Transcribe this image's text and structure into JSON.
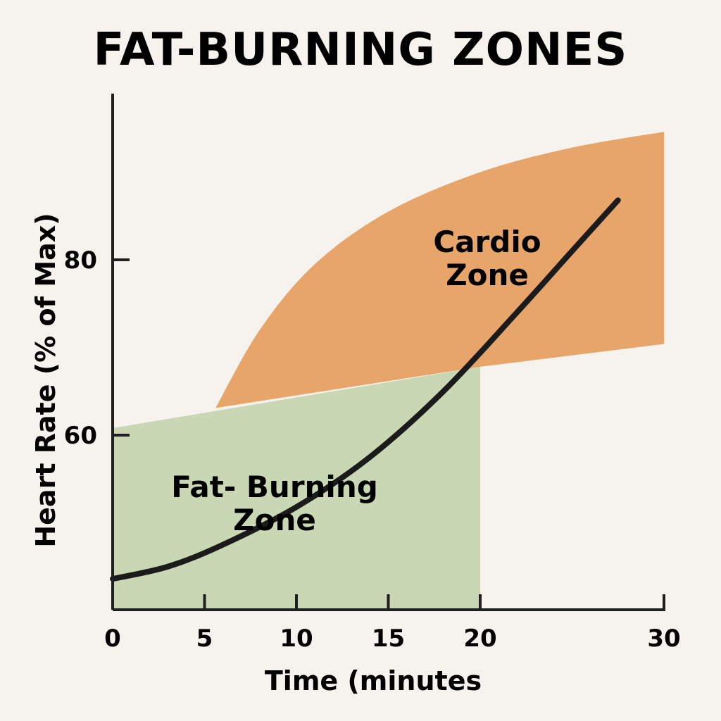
{
  "chart_data": {
    "type": "area",
    "title": "FAT-BURNING ZONES",
    "xlabel": "Time (minutes",
    "ylabel": "Heart Rate (% of Max)",
    "xlim": [
      0,
      30
    ],
    "ylim": [
      40,
      100
    ],
    "x_ticks": [
      0,
      5,
      10,
      15,
      20,
      30
    ],
    "y_ticks": [
      60,
      80
    ],
    "grid": false,
    "legend": "none",
    "zones": [
      {
        "label_lines": [
          "Fat- Burning",
          "Zone"
        ],
        "color": "#c9d7b5",
        "x_range": [
          0,
          20
        ],
        "lower": 40,
        "upper_points": [
          [
            0,
            60.8
          ],
          [
            20,
            67.8
          ]
        ]
      },
      {
        "label_lines": [
          "Cardio",
          "Zone"
        ],
        "color": "#e8a56a",
        "upper_points": [
          [
            5.6,
            63.1
          ],
          [
            8,
            72
          ],
          [
            11,
            79.5
          ],
          [
            15,
            85.5
          ],
          [
            20,
            90
          ],
          [
            25,
            92.8
          ],
          [
            30,
            94.6
          ]
        ],
        "lower_points": [
          [
            5.6,
            63.1
          ],
          [
            20,
            67.8
          ],
          [
            30,
            70.4
          ]
        ]
      }
    ],
    "series": [
      {
        "color": "#1b1b1b",
        "points": [
          [
            0,
            43.6
          ],
          [
            3,
            45
          ],
          [
            6,
            47.5
          ],
          [
            10,
            51.8
          ],
          [
            14,
            57.5
          ],
          [
            18,
            65
          ],
          [
            22,
            74
          ],
          [
            25,
            81
          ],
          [
            27.5,
            86.8
          ]
        ]
      }
    ]
  }
}
